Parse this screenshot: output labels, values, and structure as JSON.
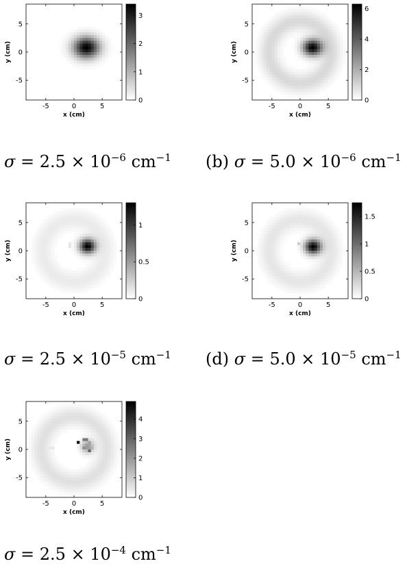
{
  "chart_data": [
    {
      "type": "heatmap",
      "xlabel": "x (cm)",
      "ylabel": "y (cm)",
      "xlim": [
        -8.5,
        8.5
      ],
      "ylim": [
        -8.5,
        8.5
      ],
      "xticks": [
        "-5",
        "0",
        "5"
      ],
      "yticks": [
        "5",
        "0",
        "-5"
      ],
      "colorbar_ticks": [
        "3",
        "2",
        "1",
        "0"
      ],
      "colorbar_max": 3.4,
      "caption": {
        "prefix": "",
        "sigma": "σ",
        "expr": "= 2.5 × 10",
        "exp": "−6",
        "unit": " cm",
        "unit_exp": "−1"
      },
      "blob": {
        "x": 2.2,
        "y": 0.8,
        "sx": 1.6,
        "sy": 1.3,
        "peak": 3.4
      },
      "ring": {
        "radius": 0,
        "level": 0
      },
      "speckles": []
    },
    {
      "type": "heatmap",
      "xlabel": "x (cm)",
      "ylabel": "y (cm)",
      "xlim": [
        -8.5,
        8.5
      ],
      "ylim": [
        -8.5,
        8.5
      ],
      "xticks": [
        "-5",
        "0",
        "5"
      ],
      "yticks": [
        "5",
        "0",
        "-5"
      ],
      "colorbar_ticks": [
        "6",
        "4",
        "2",
        "0"
      ],
      "colorbar_max": 6.3,
      "caption": {
        "prefix": "(b) ",
        "sigma": "σ",
        "expr": "= 5.0 × 10",
        "exp": "−6",
        "unit": " cm",
        "unit_exp": "−1"
      },
      "blob": {
        "x": 2.2,
        "y": 0.8,
        "sx": 1.2,
        "sy": 1.0,
        "peak": 6.3
      },
      "ring": {
        "radius": 5.5,
        "level": 0.15
      },
      "speckles": []
    },
    {
      "type": "heatmap",
      "xlabel": "x (cm)",
      "ylabel": "y (cm)",
      "xlim": [
        -8.5,
        8.5
      ],
      "ylim": [
        -8.5,
        8.5
      ],
      "xticks": [
        "-5",
        "0",
        "5"
      ],
      "yticks": [
        "5",
        "0",
        "-5"
      ],
      "colorbar_ticks": [
        "1",
        "0.5",
        "0"
      ],
      "colorbar_max": 1.3,
      "caption": {
        "prefix": "",
        "sigma": "σ",
        "expr": "= 2.5 × 10",
        "exp": "−5",
        "unit": " cm",
        "unit_exp": "−1"
      },
      "blob": {
        "x": 2.4,
        "y": 0.8,
        "sx": 1.0,
        "sy": 0.9,
        "peak": 1.3
      },
      "ring": {
        "radius": 5.5,
        "level": 0.08
      },
      "speckles": [
        {
          "x": 0.6,
          "y": 1.4,
          "v": 0.25
        },
        {
          "x": -0.6,
          "y": 1.0,
          "v": 0.12
        }
      ]
    },
    {
      "type": "heatmap",
      "xlabel": "x (cm)",
      "ylabel": "y (cm)",
      "xlim": [
        -8.5,
        8.5
      ],
      "ylim": [
        -8.5,
        8.5
      ],
      "xticks": [
        "-5",
        "0",
        "5"
      ],
      "yticks": [
        "5",
        "0",
        "-5"
      ],
      "colorbar_ticks": [
        "1.5",
        "1",
        "0.5",
        "0"
      ],
      "colorbar_max": 1.75,
      "caption": {
        "prefix": "(d) ",
        "sigma": "σ",
        "expr": "= 5.0 × 10",
        "exp": "−5",
        "unit": " cm",
        "unit_exp": "−1"
      },
      "blob": {
        "x": 2.3,
        "y": 0.7,
        "sx": 1.0,
        "sy": 0.9,
        "peak": 1.75
      },
      "ring": {
        "radius": 5.5,
        "level": 0.1
      },
      "speckles": [
        {
          "x": -0.2,
          "y": 1.4,
          "v": 0.35
        },
        {
          "x": 0.8,
          "y": 1.2,
          "v": 0.2
        }
      ]
    },
    {
      "type": "heatmap",
      "xlabel": "x (cm)",
      "ylabel": "y (cm)",
      "xlim": [
        -8.5,
        8.5
      ],
      "ylim": [
        -8.5,
        8.5
      ],
      "xticks": [
        "-5",
        "0",
        "5"
      ],
      "yticks": [
        "5",
        "0",
        "-5"
      ],
      "colorbar_ticks": [
        "4",
        "3",
        "2",
        "1",
        "0"
      ],
      "colorbar_max": 4.9,
      "caption": {
        "prefix": "",
        "sigma": "σ",
        "expr": "= 2.5 × 10",
        "exp": "−4",
        "unit": " cm",
        "unit_exp": "−1"
      },
      "blob": {
        "x": 2.4,
        "y": 0.5,
        "sx": 0.8,
        "sy": 0.8,
        "peak": 2.0
      },
      "ring": {
        "radius": 5.8,
        "level": 0.12
      },
      "speckles": [
        {
          "x": 0.9,
          "y": 1.3,
          "v": 4.9
        },
        {
          "x": 2.0,
          "y": 1.6,
          "v": 2.6
        },
        {
          "x": 2.8,
          "y": 1.2,
          "v": 1.8
        },
        {
          "x": 1.6,
          "y": 0.2,
          "v": 2.2
        },
        {
          "x": 2.6,
          "y": -0.1,
          "v": 3.0
        },
        {
          "x": 3.2,
          "y": 0.4,
          "v": 1.4
        },
        {
          "x": -4.0,
          "y": 0.3,
          "v": 0.45
        },
        {
          "x": 2.0,
          "y": -4.2,
          "v": 0.3
        },
        {
          "x": -1.0,
          "y": -4.2,
          "v": 0.25
        }
      ]
    }
  ]
}
